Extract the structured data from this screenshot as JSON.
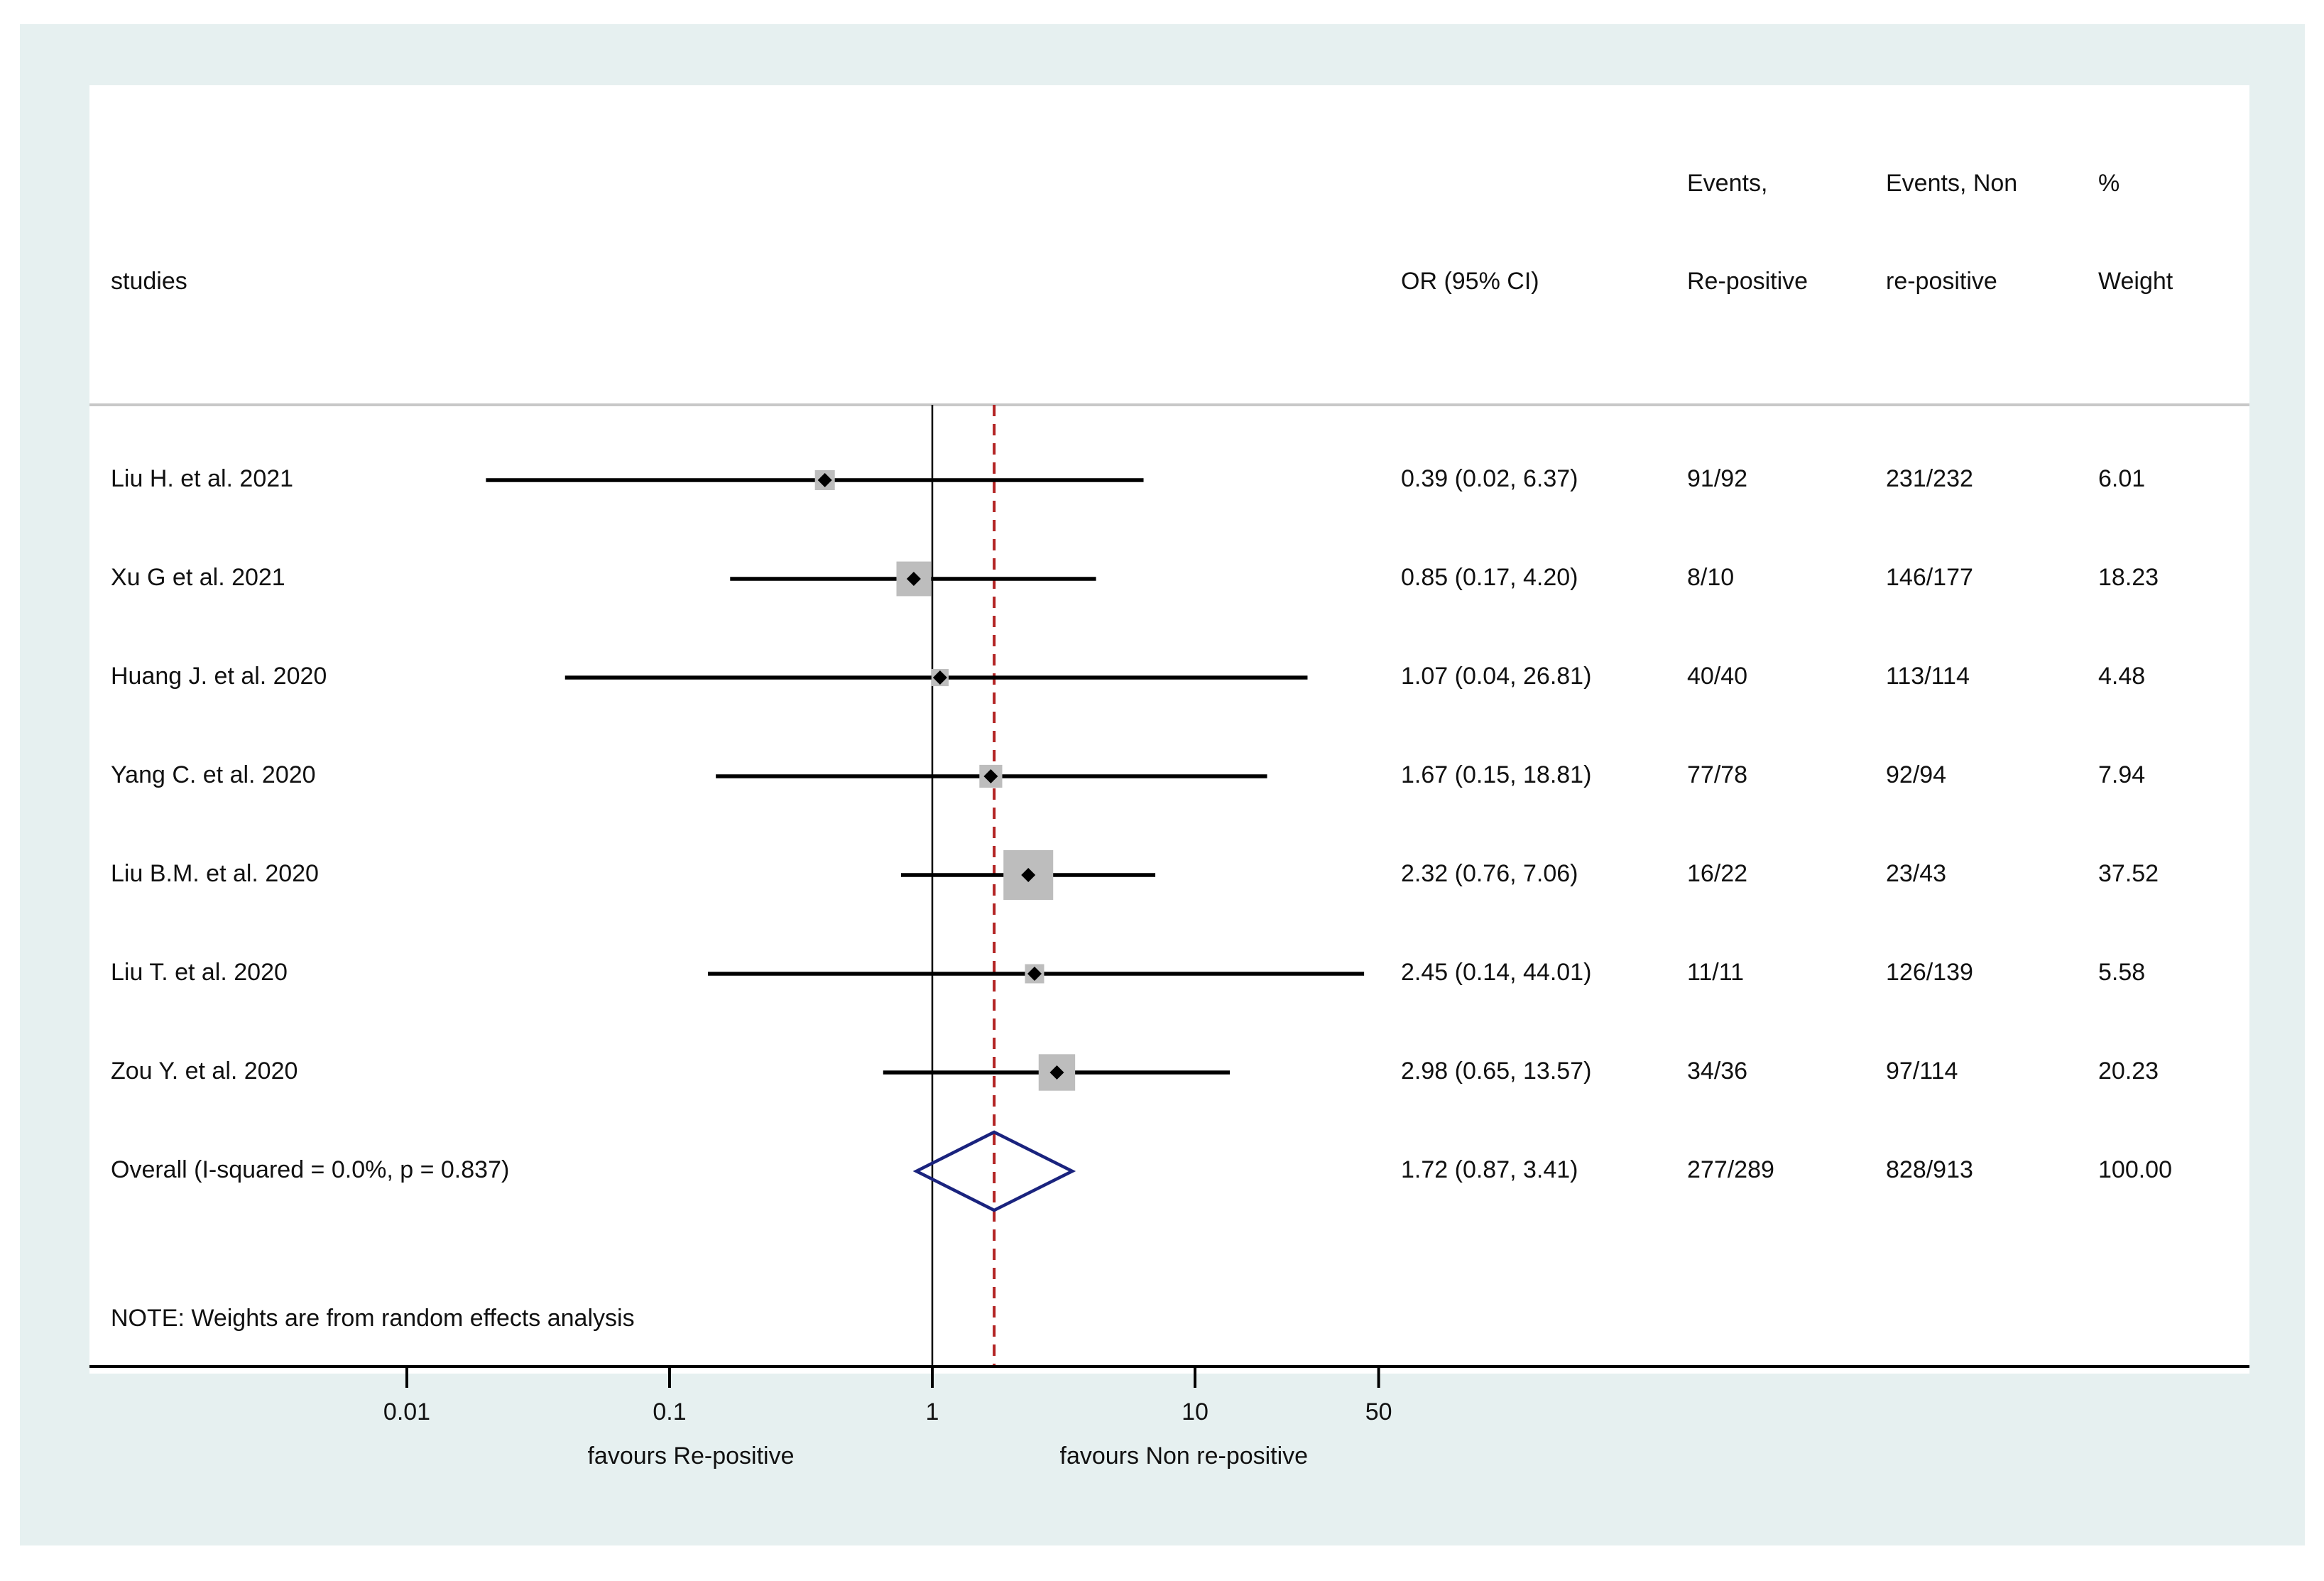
{
  "chart_data": {
    "type": "forest",
    "scale": "log",
    "headers": {
      "studies": "studies",
      "or": "OR (95% CI)",
      "events_rep_1": "Events,",
      "events_rep_2": "Re-positive",
      "events_non_1": "Events, Non",
      "events_non_2": "re-positive",
      "weight_1": "%",
      "weight_2": "Weight"
    },
    "studies": [
      {
        "name": "Liu H. et al. 2021",
        "or": 0.39,
        "lo": 0.02,
        "hi": 6.37,
        "or_text": "0.39 (0.02, 6.37)",
        "events_rep": "91/92",
        "events_non": "231/232",
        "weight": 6.01,
        "weight_text": "6.01"
      },
      {
        "name": "Xu G et al. 2021",
        "or": 0.85,
        "lo": 0.17,
        "hi": 4.2,
        "or_text": "0.85 (0.17, 4.20)",
        "events_rep": "8/10",
        "events_non": "146/177",
        "weight": 18.23,
        "weight_text": "18.23"
      },
      {
        "name": "Huang J. et al. 2020",
        "or": 1.07,
        "lo": 0.04,
        "hi": 26.81,
        "or_text": "1.07 (0.04, 26.81)",
        "events_rep": "40/40",
        "events_non": "113/114",
        "weight": 4.48,
        "weight_text": "4.48"
      },
      {
        "name": "Yang C. et al. 2020",
        "or": 1.67,
        "lo": 0.15,
        "hi": 18.81,
        "or_text": "1.67 (0.15, 18.81)",
        "events_rep": "77/78",
        "events_non": "92/94",
        "weight": 7.94,
        "weight_text": "7.94"
      },
      {
        "name": "Liu B.M. et al. 2020",
        "or": 2.32,
        "lo": 0.76,
        "hi": 7.06,
        "or_text": "2.32 (0.76, 7.06)",
        "events_rep": "16/22",
        "events_non": "23/43",
        "weight": 37.52,
        "weight_text": "37.52"
      },
      {
        "name": "Liu T. et al. 2020",
        "or": 2.45,
        "lo": 0.14,
        "hi": 44.01,
        "or_text": "2.45 (0.14, 44.01)",
        "events_rep": "11/11",
        "events_non": "126/139",
        "weight": 5.58,
        "weight_text": "5.58"
      },
      {
        "name": "Zou Y. et al. 2020",
        "or": 2.98,
        "lo": 0.65,
        "hi": 13.57,
        "or_text": "2.98 (0.65, 13.57)",
        "events_rep": "34/36",
        "events_non": "97/114",
        "weight": 20.23,
        "weight_text": "20.23"
      }
    ],
    "overall": {
      "label": "Overall  (I-squared = 0.0%, p = 0.837)",
      "or": 1.72,
      "lo": 0.87,
      "hi": 3.41,
      "or_text": "1.72 (0.87, 3.41)",
      "events_rep": "277/289",
      "events_non": "828/913",
      "weight_text": "100.00"
    },
    "note": "NOTE: Weights are from random effects analysis",
    "x_ticks": [
      {
        "value": 0.01,
        "label": "0.01"
      },
      {
        "value": 0.1,
        "label": "0.1"
      },
      {
        "value": 1,
        "label": "1"
      },
      {
        "value": 10,
        "label": "10"
      },
      {
        "value": 50,
        "label": "50"
      }
    ],
    "favours_left": "favours Re-positive",
    "favours_right": "favours Non re-positive",
    "colors": {
      "background": "#e6f0f0",
      "panel": "#ffffff",
      "line": "#000000",
      "box": "#bdbdbd",
      "diamond": "#1a237e",
      "overall_line": "#b22222",
      "separator": "#c8c8c8"
    }
  }
}
